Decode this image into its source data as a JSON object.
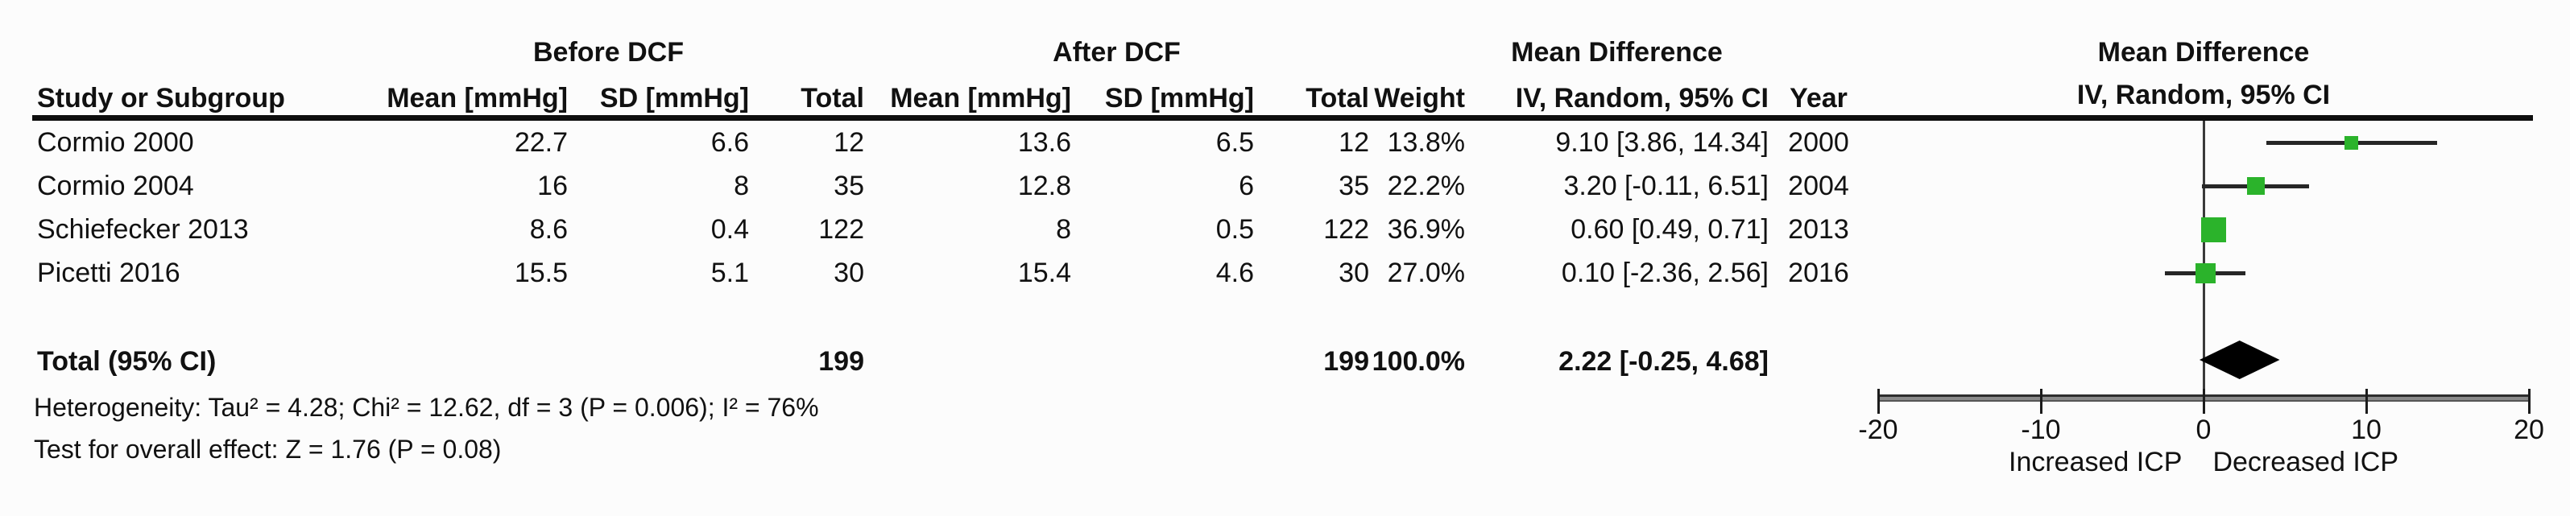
{
  "table": {
    "group_headers": {
      "before": "Before DCF",
      "after": "After DCF",
      "md": "Mean Difference"
    },
    "columns": [
      "Study or Subgroup",
      "Mean [mmHg]",
      "SD [mmHg]",
      "Total",
      "Mean [mmHg]",
      "SD [mmHg]",
      "Total",
      "Weight",
      "IV, Random, 95% CI",
      "Year"
    ],
    "rows": [
      {
        "study": "Cormio 2000",
        "b_mean": "22.7",
        "b_sd": "6.6",
        "b_total": "12",
        "a_mean": "13.6",
        "a_sd": "6.5",
        "a_total": "12",
        "weight": "13.8%",
        "ci": "9.10 [3.86, 14.34]",
        "year": "2000"
      },
      {
        "study": "Cormio 2004",
        "b_mean": "16",
        "b_sd": "8",
        "b_total": "35",
        "a_mean": "12.8",
        "a_sd": "6",
        "a_total": "35",
        "weight": "22.2%",
        "ci": "3.20 [-0.11, 6.51]",
        "year": "2004"
      },
      {
        "study": "Schiefecker 2013",
        "b_mean": "8.6",
        "b_sd": "0.4",
        "b_total": "122",
        "a_mean": "8",
        "a_sd": "0.5",
        "a_total": "122",
        "weight": "36.9%",
        "ci": "0.60 [0.49, 0.71]",
        "year": "2013"
      },
      {
        "study": "Picetti 2016",
        "b_mean": "15.5",
        "b_sd": "5.1",
        "b_total": "30",
        "a_mean": "15.4",
        "a_sd": "4.6",
        "a_total": "30",
        "weight": "27.0%",
        "ci": "0.10 [-2.36, 2.56]",
        "year": "2016"
      }
    ],
    "total_row": {
      "label": "Total (95% CI)",
      "b_total": "199",
      "a_total": "199",
      "weight": "100.0%",
      "ci": "2.22 [-0.25, 4.68]"
    },
    "heterogeneity_text": "Heterogeneity: Tau² = 4.28; Chi² = 12.62, df = 3 (P = 0.006); I² = 76%",
    "overall_effect_text": "Test for overall effect: Z = 1.76 (P = 0.08)"
  },
  "plot": {
    "header_line1": "Mean Difference",
    "header_line2": "IV, Random, 95% CI",
    "left_label": "Increased ICP",
    "right_label": "Decreased ICP",
    "tick_labels": [
      "-20",
      "-10",
      "0",
      "10",
      "20"
    ],
    "marker_color": "#2bb32b",
    "diamond_color": "#000000"
  },
  "chart_data": {
    "type": "forest",
    "effect_measure": "Mean Difference",
    "model": "IV, Random, 95% CI",
    "x_axis": {
      "min": -20,
      "max": 20,
      "ticks": [
        -20,
        -10,
        0,
        10,
        20
      ],
      "label_left": "Increased ICP",
      "label_right": "Decreased ICP"
    },
    "studies": [
      {
        "name": "Cormio 2000",
        "year": 2000,
        "before": {
          "mean": 22.7,
          "sd": 6.6,
          "total": 12
        },
        "after": {
          "mean": 13.6,
          "sd": 6.5,
          "total": 12
        },
        "weight_pct": 13.8,
        "md": 9.1,
        "ci_low": 3.86,
        "ci_high": 14.34
      },
      {
        "name": "Cormio 2004",
        "year": 2004,
        "before": {
          "mean": 16,
          "sd": 8,
          "total": 35
        },
        "after": {
          "mean": 12.8,
          "sd": 6,
          "total": 35
        },
        "weight_pct": 22.2,
        "md": 3.2,
        "ci_low": -0.11,
        "ci_high": 6.51
      },
      {
        "name": "Schiefecker 2013",
        "year": 2013,
        "before": {
          "mean": 8.6,
          "sd": 0.4,
          "total": 122
        },
        "after": {
          "mean": 8,
          "sd": 0.5,
          "total": 122
        },
        "weight_pct": 36.9,
        "md": 0.6,
        "ci_low": 0.49,
        "ci_high": 0.71
      },
      {
        "name": "Picetti 2016",
        "year": 2016,
        "before": {
          "mean": 15.5,
          "sd": 5.1,
          "total": 30
        },
        "after": {
          "mean": 15.4,
          "sd": 4.6,
          "total": 30
        },
        "weight_pct": 27.0,
        "md": 0.1,
        "ci_low": -2.36,
        "ci_high": 2.56
      }
    ],
    "total": {
      "name": "Total (95% CI)",
      "total_before": 199,
      "total_after": 199,
      "weight_pct": 100.0,
      "md": 2.22,
      "ci_low": -0.25,
      "ci_high": 4.68
    },
    "heterogeneity": {
      "tau2": 4.28,
      "chi2": 12.62,
      "df": 3,
      "p": 0.006,
      "i2_pct": 76
    },
    "overall_effect": {
      "z": 1.76,
      "p": 0.08
    }
  }
}
